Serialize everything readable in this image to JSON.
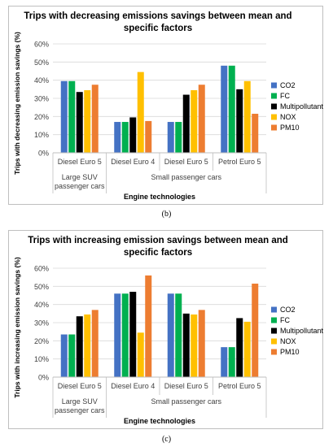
{
  "figures": [
    {
      "caption": "(b)"
    },
    {
      "caption": "(c)"
    }
  ],
  "chart_data": [
    {
      "type": "bar",
      "title": "Trips with decreasing emissions savings between mean and specific factors",
      "title_lines": [
        "Trips with decreasing emissions savings between mean and",
        "specific factors"
      ],
      "xlabel": "Engine technologies",
      "ylabel": "Trips with decreasing emission savings (%)",
      "ylim": [
        0,
        60
      ],
      "yticks": [
        "0%",
        "10%",
        "20%",
        "30%",
        "40%",
        "50%",
        "60%"
      ],
      "categories": [
        "Diesel Euro 5",
        "Diesel Euro 4",
        "Diesel Euro 5",
        "Petrol Euro 5"
      ],
      "groups": [
        {
          "label_lines": [
            "Large SUV",
            "passenger cars"
          ],
          "span": [
            0,
            0
          ]
        },
        {
          "label_lines": [
            "Small passenger cars"
          ],
          "span": [
            1,
            3
          ]
        }
      ],
      "legend_position": "right",
      "grid": true,
      "series": [
        {
          "name": "CO2",
          "color": "#4472C4",
          "values": [
            39.5,
            17,
            17,
            48
          ]
        },
        {
          "name": "FC",
          "color": "#00B050",
          "values": [
            39.5,
            17,
            17,
            48
          ]
        },
        {
          "name": "Multipollutant",
          "color": "#000000",
          "values": [
            33.5,
            19.5,
            32,
            35
          ]
        },
        {
          "name": "NOX",
          "color": "#FFC000",
          "values": [
            34.5,
            44.5,
            34.5,
            39.5
          ]
        },
        {
          "name": "PM10",
          "color": "#ED7D31",
          "values": [
            37.5,
            17.5,
            37.5,
            21.5
          ]
        }
      ]
    },
    {
      "type": "bar",
      "title": "Trips with increasing emission savings between mean and specific factors",
      "title_lines": [
        "Trips with increasing emission savings between mean and",
        "specific factors"
      ],
      "xlabel": "Engine technologies",
      "ylabel": "Trips with increasing emission savings (%)",
      "ylim": [
        0,
        60
      ],
      "yticks": [
        "0%",
        "10%",
        "20%",
        "30%",
        "40%",
        "50%",
        "60%"
      ],
      "categories": [
        "Diesel Euro 5",
        "Diesel Euro 4",
        "Diesel Euro 5",
        "Petrol Euro 5"
      ],
      "groups": [
        {
          "label_lines": [
            "Large SUV",
            "passenger cars"
          ],
          "span": [
            0,
            0
          ]
        },
        {
          "label_lines": [
            "Small passenger cars"
          ],
          "span": [
            1,
            3
          ]
        }
      ],
      "legend_position": "right",
      "grid": true,
      "series": [
        {
          "name": "CO2",
          "color": "#4472C4",
          "values": [
            23.5,
            46,
            46,
            16.5
          ]
        },
        {
          "name": "FC",
          "color": "#00B050",
          "values": [
            23.5,
            46,
            46,
            16.5
          ]
        },
        {
          "name": "Multipollutant",
          "color": "#000000",
          "values": [
            33.5,
            47,
            35,
            32.5
          ]
        },
        {
          "name": "NOX",
          "color": "#FFC000",
          "values": [
            34.5,
            24.5,
            34.5,
            30.5
          ]
        },
        {
          "name": "PM10",
          "color": "#ED7D31",
          "values": [
            37,
            56,
            37,
            51.5
          ]
        }
      ]
    }
  ]
}
